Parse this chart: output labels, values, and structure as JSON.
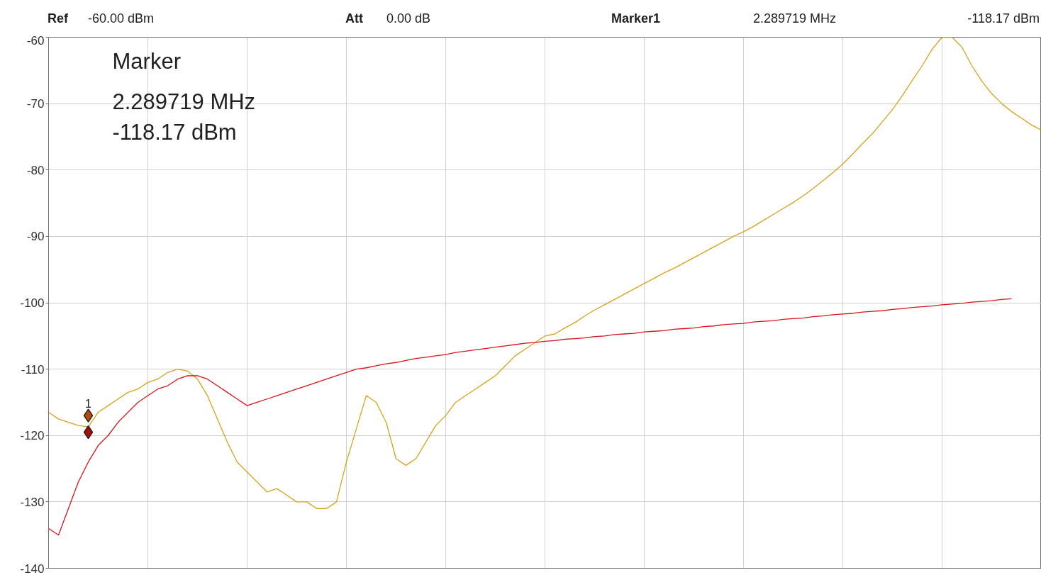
{
  "chart_data": {
    "type": "line",
    "categories": [
      null,
      null,
      null,
      null,
      null,
      null,
      null,
      null,
      null,
      null,
      null,
      null,
      null,
      null,
      null,
      null,
      null,
      null,
      null,
      null,
      null,
      null,
      null,
      null,
      null,
      null,
      null,
      null,
      null,
      null,
      null,
      null,
      null,
      null,
      null,
      null,
      null,
      null,
      null,
      null,
      null,
      null,
      null,
      null,
      null,
      null,
      null,
      null,
      null,
      null,
      null,
      null,
      null,
      null,
      null,
      null,
      null,
      null,
      null,
      null,
      null,
      null,
      null,
      null,
      null,
      null,
      null,
      null,
      null,
      null,
      null,
      null,
      null,
      null,
      null,
      null,
      null,
      null,
      null,
      null,
      null,
      null,
      null,
      null,
      null,
      null,
      null,
      null,
      null,
      null,
      null,
      null,
      null,
      null,
      null,
      null,
      null,
      null,
      null,
      null,
      null
    ],
    "ylim": [
      -140,
      -60
    ],
    "yticks": [
      -140,
      -130,
      -120,
      -110,
      -100,
      -90,
      -80,
      -70,
      -60
    ],
    "tick_labels": "y",
    "grid": true,
    "series": [
      {
        "color": "#d9a21b",
        "values": [
          -116.5,
          -117.5,
          -118,
          -118.5,
          -118.7,
          -116.5,
          -115.5,
          -114.5,
          -113.5,
          -113,
          -112,
          -111.5,
          -110.5,
          -110,
          -110.3,
          -111.5,
          -114,
          -117.5,
          -121,
          -124,
          -125.5,
          -127,
          -128.5,
          -128,
          -129,
          -130,
          -130,
          -131,
          -131,
          -130,
          -124,
          -119,
          -114,
          -115,
          -118,
          -123.5,
          -124.5,
          -123.5,
          -121,
          -118.5,
          -117,
          -115,
          -114,
          -113,
          -112,
          -111,
          -109.5,
          -108,
          -107,
          -106,
          -105,
          -104.7,
          -103.8,
          -103,
          -102,
          -101.1,
          -100.3,
          -99.5,
          -98.7,
          -97.9,
          -97.1,
          -96.3,
          -95.5,
          -94.8,
          -94,
          -93.2,
          -92.4,
          -91.6,
          -90.8,
          -90,
          -89.3,
          -88.5,
          -87.6,
          -86.7,
          -85.8,
          -84.9,
          -83.9,
          -82.8,
          -81.6,
          -80.4,
          -79.1,
          -77.6,
          -76,
          -74.5,
          -72.7,
          -70.9,
          -68.8,
          -66.5,
          -64.3,
          -61.8,
          -60,
          -60,
          -61.5,
          -64.3,
          -66.6,
          -68.5,
          -70,
          -71.2,
          -72.2,
          -73.2,
          -74
        ]
      },
      {
        "color": "#d8141c",
        "values": [
          -134,
          -135,
          -131,
          -127,
          -124,
          -121.5,
          -120,
          -118,
          -116.5,
          -115,
          -114,
          -113,
          -112.5,
          -111.5,
          -111,
          -111,
          -111.5,
          -112.5,
          -113.5,
          -114.5,
          -115.5,
          -115,
          -114.5,
          -114,
          -113.5,
          -113,
          -112.5,
          -112,
          -111.5,
          -111,
          -110.5,
          -110,
          -109.8,
          -109.5,
          -109.2,
          -109,
          -108.7,
          -108.4,
          -108.2,
          -108,
          -107.8,
          -107.5,
          -107.3,
          -107.1,
          -106.9,
          -106.7,
          -106.5,
          -106.3,
          -106.1,
          -106,
          -105.8,
          -105.7,
          -105.5,
          -105.4,
          -105.3,
          -105.1,
          -105,
          -104.8,
          -104.7,
          -104.6,
          -104.4,
          -104.3,
          -104.2,
          -104,
          -103.9,
          -103.8,
          -103.6,
          -103.5,
          -103.3,
          -103.2,
          -103.1,
          -102.9,
          -102.8,
          -102.7,
          -102.5,
          -102.4,
          -102.3,
          -102.1,
          -102,
          -101.8,
          -101.7,
          -101.6,
          -101.4,
          -101.3,
          -101.2,
          -101,
          -100.9,
          -100.7,
          -100.6,
          -100.5,
          -100.3,
          -100.2,
          -100.1,
          -99.9,
          -99.8,
          -99.7,
          -99.5,
          -99.4,
          null,
          null,
          null
        ]
      },
      {
        "type": "scatter",
        "marker": "diamond",
        "color": "#b84a06",
        "values": [
          null,
          null,
          null,
          null,
          -117,
          null,
          null,
          null,
          null,
          null,
          null,
          null,
          null,
          null,
          null,
          null,
          null,
          null,
          null,
          null,
          null,
          null,
          null,
          null,
          null,
          null,
          null,
          null,
          null,
          null,
          null,
          null,
          null,
          null,
          null,
          null,
          null,
          null,
          null,
          null,
          null,
          null,
          null,
          null,
          null,
          null,
          null,
          null,
          null,
          null,
          null,
          null,
          null,
          null,
          null,
          null,
          null,
          null,
          null,
          null,
          null,
          null,
          null,
          null,
          null,
          null,
          null,
          null,
          null,
          null,
          null,
          null,
          null,
          null,
          null,
          null,
          null,
          null,
          null,
          null,
          null,
          null,
          null,
          null,
          null,
          null,
          null,
          null,
          null,
          null,
          null,
          null,
          null,
          null,
          null,
          null,
          null,
          null,
          null,
          null,
          null
        ]
      },
      {
        "type": "scatter",
        "marker": "diamond",
        "color": "#a80c0c",
        "values": [
          null,
          null,
          null,
          null,
          -119.5,
          null,
          null,
          null,
          null,
          null,
          null,
          null,
          null,
          null,
          null,
          null,
          null,
          null,
          null,
          null,
          null,
          null,
          null,
          null,
          null,
          null,
          null,
          null,
          null,
          null,
          null,
          null,
          null,
          null,
          null,
          null,
          null,
          null,
          null,
          null,
          null,
          null,
          null,
          null,
          null,
          null,
          null,
          null,
          null,
          null,
          null,
          null,
          null,
          null,
          null,
          null,
          null,
          null,
          null,
          null,
          null,
          null,
          null,
          null,
          null,
          null,
          null,
          null,
          null,
          null,
          null,
          null,
          null,
          null,
          null,
          null,
          null,
          null,
          null,
          null,
          null,
          null,
          null,
          null,
          null,
          null,
          null,
          null,
          null,
          null,
          null,
          null,
          null,
          null,
          null,
          null,
          null,
          null,
          null,
          null,
          null
        ]
      }
    ],
    "annotations": [
      "Ref",
      "-60.00 dBm",
      "Att",
      "0.00 dB",
      "Marker1",
      "2.289719 MHz",
      "-118.17 dBm",
      "Marker",
      "2.289719 MHz",
      "-118.17 dBm",
      "1"
    ]
  }
}
